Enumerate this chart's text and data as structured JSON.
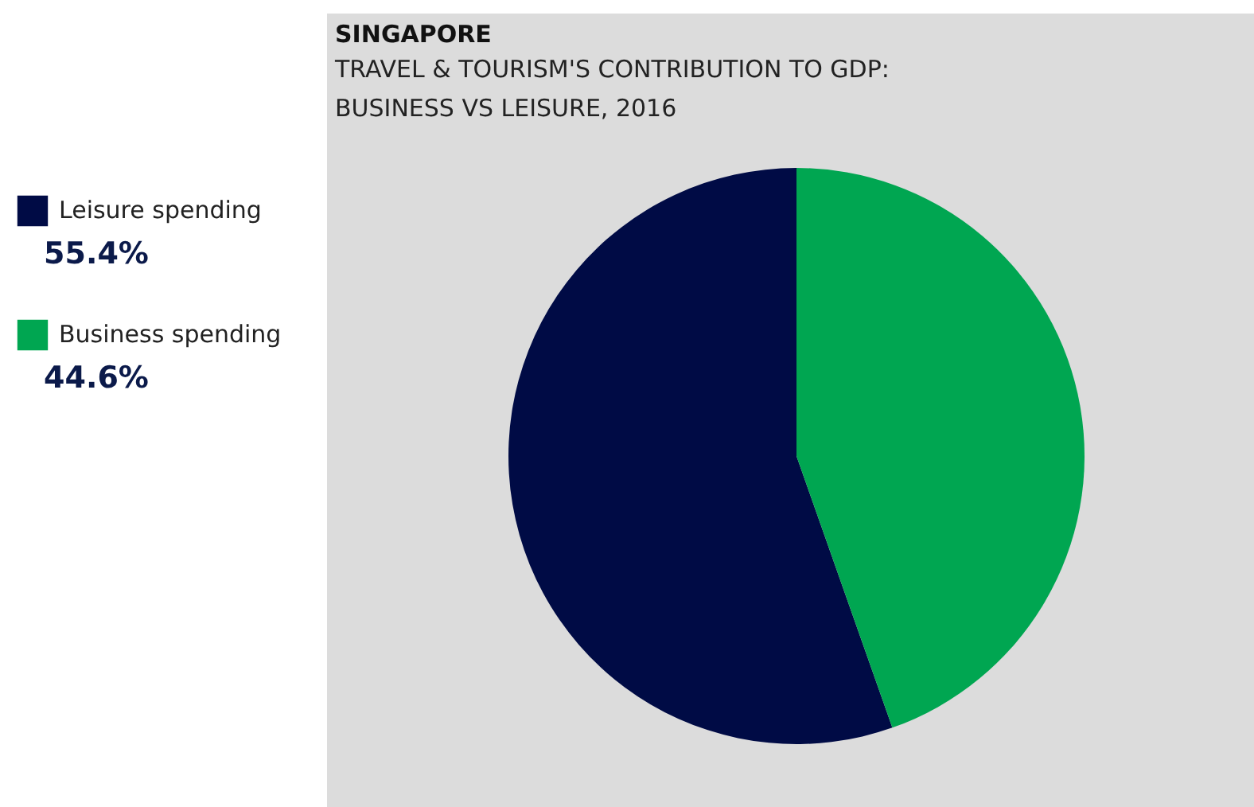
{
  "chart_data": {
    "type": "pie",
    "title": "SINGAPORE",
    "subtitle": "TRAVEL & TOURISM'S CONTRIBUTION TO GDP: BUSINESS VS LEISURE, 2016",
    "categories": [
      "Leisure spending",
      "Business spending"
    ],
    "values": [
      55.4,
      44.6
    ],
    "colors": [
      "#000b45",
      "#00a651"
    ],
    "value_labels": [
      "55.4%",
      "44.6%"
    ],
    "legend": "left"
  }
}
